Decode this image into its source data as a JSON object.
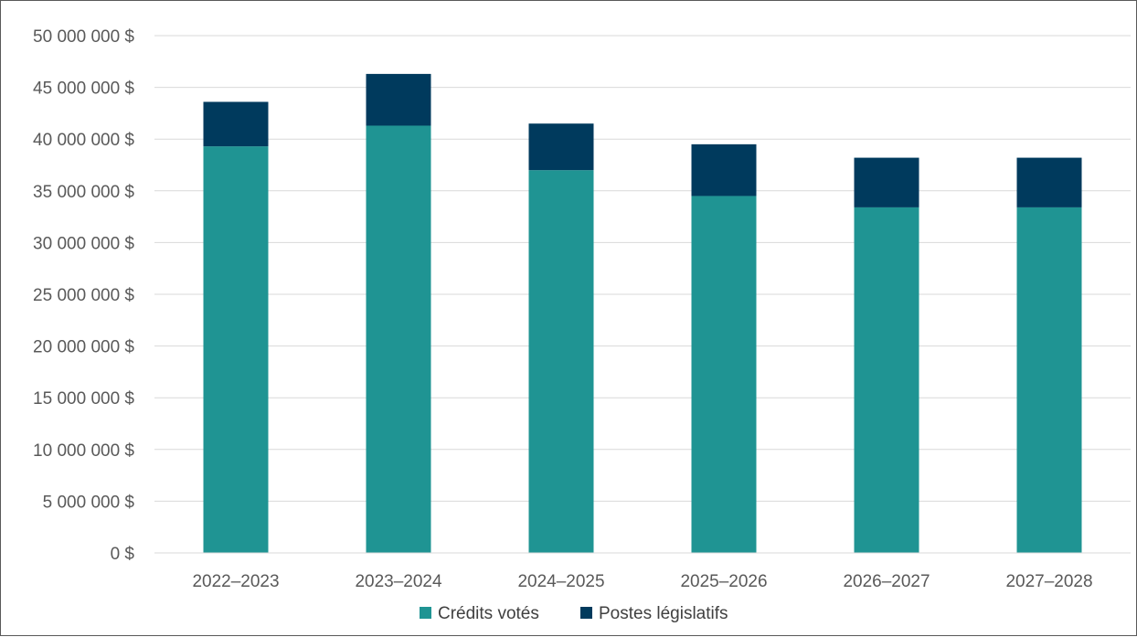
{
  "chart_data": {
    "type": "bar",
    "stacked": true,
    "title": "",
    "xlabel": "",
    "ylabel": "",
    "categories": [
      "2022–2023",
      "2023–2024",
      "2024–2025",
      "2025–2026",
      "2026–2027",
      "2027–2028"
    ],
    "series": [
      {
        "name": "Crédits votés",
        "color": "#1f9493",
        "values": [
          39300000,
          41300000,
          37000000,
          34500000,
          33400000,
          33400000
        ]
      },
      {
        "name": "Postes législatifs",
        "color": "#003a5d",
        "values": [
          4300000,
          5000000,
          4500000,
          5000000,
          4800000,
          4800000
        ]
      }
    ],
    "ylim": [
      0,
      50000000
    ],
    "ytick_labels": [
      "0 $",
      "5 000 000 $",
      "10 000 000 $",
      "15 000 000 $",
      "20 000 000 $",
      "25 000 000 $",
      "30 000 000 $",
      "35 000 000 $",
      "40 000 000 $",
      "45 000 000 $",
      "50 000 000 $"
    ],
    "grid": true,
    "legend_position": "bottom"
  }
}
